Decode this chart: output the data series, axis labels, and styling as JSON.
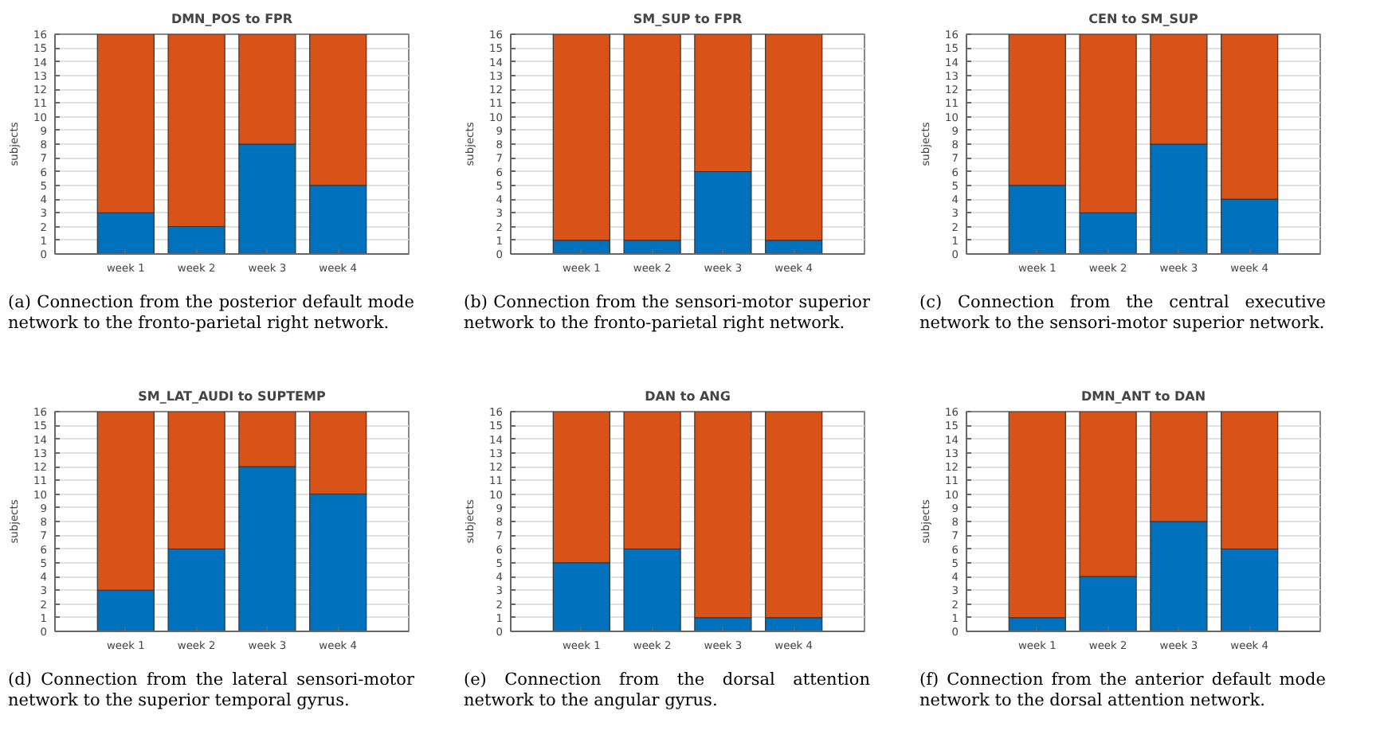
{
  "chart_data": [
    {
      "type": "bar",
      "title": "DMN_POS to FPR",
      "ylabel": "subjects",
      "categories": [
        "week 1",
        "week 2",
        "week 3",
        "week 4"
      ],
      "stacked": true,
      "ylim": [
        0,
        16
      ],
      "yticks": [
        0,
        1,
        2,
        3,
        4,
        5,
        6,
        7,
        8,
        9,
        10,
        11,
        12,
        13,
        14,
        15,
        16
      ],
      "grid": "y",
      "series": [
        {
          "color": "#0072bd",
          "values": [
            3,
            2,
            8,
            5
          ]
        },
        {
          "color": "#d95319",
          "values": [
            13,
            14,
            8,
            11
          ]
        }
      ],
      "annotations": [
        "(a) Connection from the posterior default mode network to the fronto-parietal right network."
      ]
    },
    {
      "type": "bar",
      "title": "SM_SUP to FPR",
      "ylabel": "subjects",
      "categories": [
        "week 1",
        "week 2",
        "week 3",
        "week 4"
      ],
      "stacked": true,
      "ylim": [
        0,
        16
      ],
      "yticks": [
        0,
        1,
        2,
        3,
        4,
        5,
        6,
        7,
        8,
        9,
        10,
        11,
        12,
        13,
        14,
        15,
        16
      ],
      "grid": "y",
      "series": [
        {
          "color": "#0072bd",
          "values": [
            1,
            1,
            6,
            1
          ]
        },
        {
          "color": "#d95319",
          "values": [
            15,
            15,
            10,
            15
          ]
        }
      ],
      "annotations": [
        "(b) Connection from the sensori-motor superior network to the fronto-parietal right network."
      ]
    },
    {
      "type": "bar",
      "title": "CEN to SM_SUP",
      "ylabel": "subjects",
      "categories": [
        "week 1",
        "week 2",
        "week 3",
        "week 4"
      ],
      "stacked": true,
      "ylim": [
        0,
        16
      ],
      "yticks": [
        0,
        1,
        2,
        3,
        4,
        5,
        6,
        7,
        8,
        9,
        10,
        11,
        12,
        13,
        14,
        15,
        16
      ],
      "grid": "y",
      "series": [
        {
          "color": "#0072bd",
          "values": [
            5,
            3,
            8,
            4
          ]
        },
        {
          "color": "#d95319",
          "values": [
            11,
            13,
            8,
            12
          ]
        }
      ],
      "annotations": [
        "(c) Connection from the central executive network to the sensori-motor superior network."
      ]
    },
    {
      "type": "bar",
      "title": "SM_LAT_AUDI to SUPTEMP",
      "ylabel": "subjects",
      "categories": [
        "week 1",
        "week 2",
        "week 3",
        "week 4"
      ],
      "stacked": true,
      "ylim": [
        0,
        16
      ],
      "yticks": [
        0,
        1,
        2,
        3,
        4,
        5,
        6,
        7,
        8,
        9,
        10,
        11,
        12,
        13,
        14,
        15,
        16
      ],
      "grid": "y",
      "series": [
        {
          "color": "#0072bd",
          "values": [
            3,
            6,
            12,
            10
          ]
        },
        {
          "color": "#d95319",
          "values": [
            13,
            10,
            4,
            6
          ]
        }
      ],
      "annotations": [
        "(d) Connection from the lateral sensori-motor network to the superior temporal gyrus."
      ]
    },
    {
      "type": "bar",
      "title": "DAN to ANG",
      "ylabel": "subjects",
      "categories": [
        "week 1",
        "week 2",
        "week 3",
        "week 4"
      ],
      "stacked": true,
      "ylim": [
        0,
        16
      ],
      "yticks": [
        0,
        1,
        2,
        3,
        4,
        5,
        6,
        7,
        8,
        9,
        10,
        11,
        12,
        13,
        14,
        15,
        16
      ],
      "grid": "y",
      "series": [
        {
          "color": "#0072bd",
          "values": [
            5,
            6,
            1,
            1
          ]
        },
        {
          "color": "#d95319",
          "values": [
            11,
            10,
            15,
            15
          ]
        }
      ],
      "annotations": [
        "(e) Connection from the dorsal attention network to the angular gyrus."
      ]
    },
    {
      "type": "bar",
      "title": "DMN_ANT to DAN",
      "ylabel": "subjects",
      "categories": [
        "week 1",
        "week 2",
        "week 3",
        "week 4"
      ],
      "stacked": true,
      "ylim": [
        0,
        16
      ],
      "yticks": [
        0,
        1,
        2,
        3,
        4,
        5,
        6,
        7,
        8,
        9,
        10,
        11,
        12,
        13,
        14,
        15,
        16
      ],
      "grid": "y",
      "series": [
        {
          "color": "#0072bd",
          "values": [
            1,
            4,
            8,
            6
          ]
        },
        {
          "color": "#d95319",
          "values": [
            15,
            12,
            8,
            10
          ]
        }
      ],
      "annotations": [
        "(f) Connection from the anterior default mode network to the dorsal attention network."
      ]
    }
  ]
}
